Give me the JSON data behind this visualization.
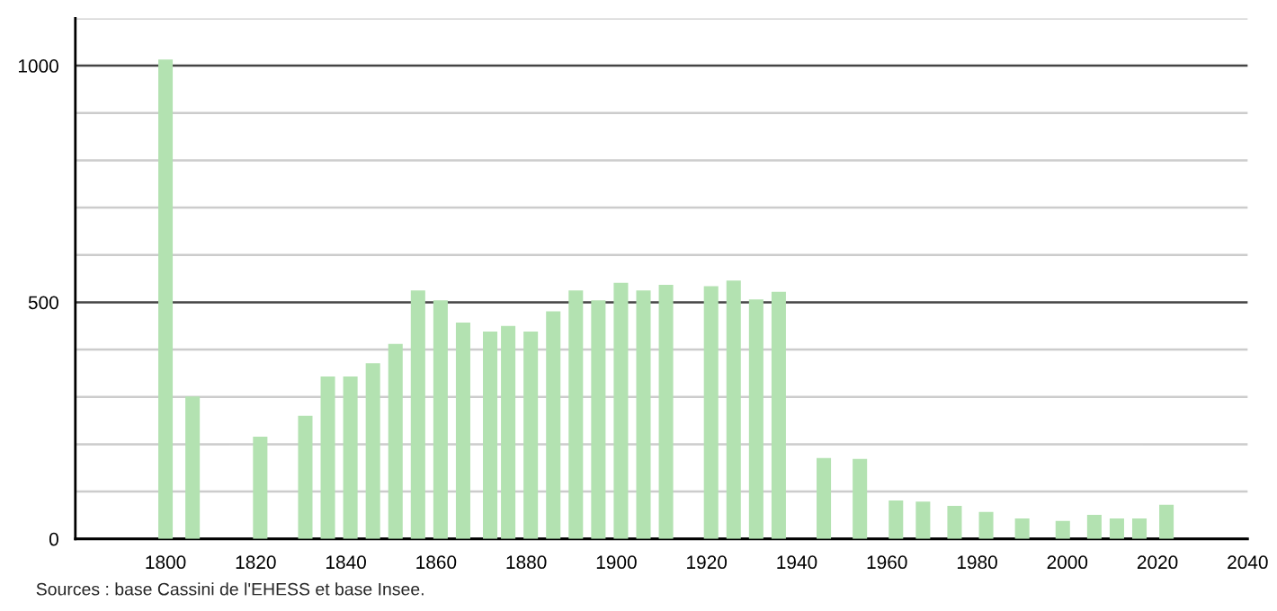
{
  "chart_data": {
    "type": "bar",
    "x": [
      1800,
      1806,
      1821,
      1831,
      1836,
      1841,
      1846,
      1851,
      1856,
      1861,
      1866,
      1872,
      1876,
      1881,
      1886,
      1891,
      1896,
      1901,
      1906,
      1911,
      1921,
      1926,
      1931,
      1936,
      1946,
      1954,
      1962,
      1968,
      1975,
      1982,
      1990,
      1999,
      2006,
      2011,
      2016,
      2022
    ],
    "values": [
      1013,
      301,
      216,
      260,
      343,
      343,
      371,
      412,
      525,
      504,
      457,
      438,
      450,
      438,
      481,
      525,
      504,
      541,
      525,
      537,
      534,
      546,
      506,
      522,
      171,
      169,
      81,
      79,
      70,
      57,
      43,
      38,
      51,
      43,
      43,
      72
    ],
    "color": "#b3e2b1",
    "xlim": [
      1780,
      2040
    ],
    "xticks": [
      1800,
      1820,
      1840,
      1860,
      1880,
      1900,
      1920,
      1940,
      1960,
      1980,
      2000,
      2020,
      2040
    ],
    "ylim": [
      0,
      1100
    ],
    "yticks": [
      0,
      {
        "value": 100,
        "label": null
      },
      {
        "value": 200,
        "label": null
      },
      {
        "value": 300,
        "label": null
      },
      {
        "value": 400,
        "label": null
      },
      500,
      {
        "value": 600,
        "label": null
      },
      {
        "value": 700,
        "label": null
      },
      {
        "value": 800,
        "label": null
      },
      {
        "value": 900,
        "label": null
      },
      1000,
      {
        "value": 1100,
        "label": null
      }
    ],
    "grid": "y",
    "annotations": [
      "Sources : base Cassini de l'EHESS et base Insee."
    ]
  }
}
